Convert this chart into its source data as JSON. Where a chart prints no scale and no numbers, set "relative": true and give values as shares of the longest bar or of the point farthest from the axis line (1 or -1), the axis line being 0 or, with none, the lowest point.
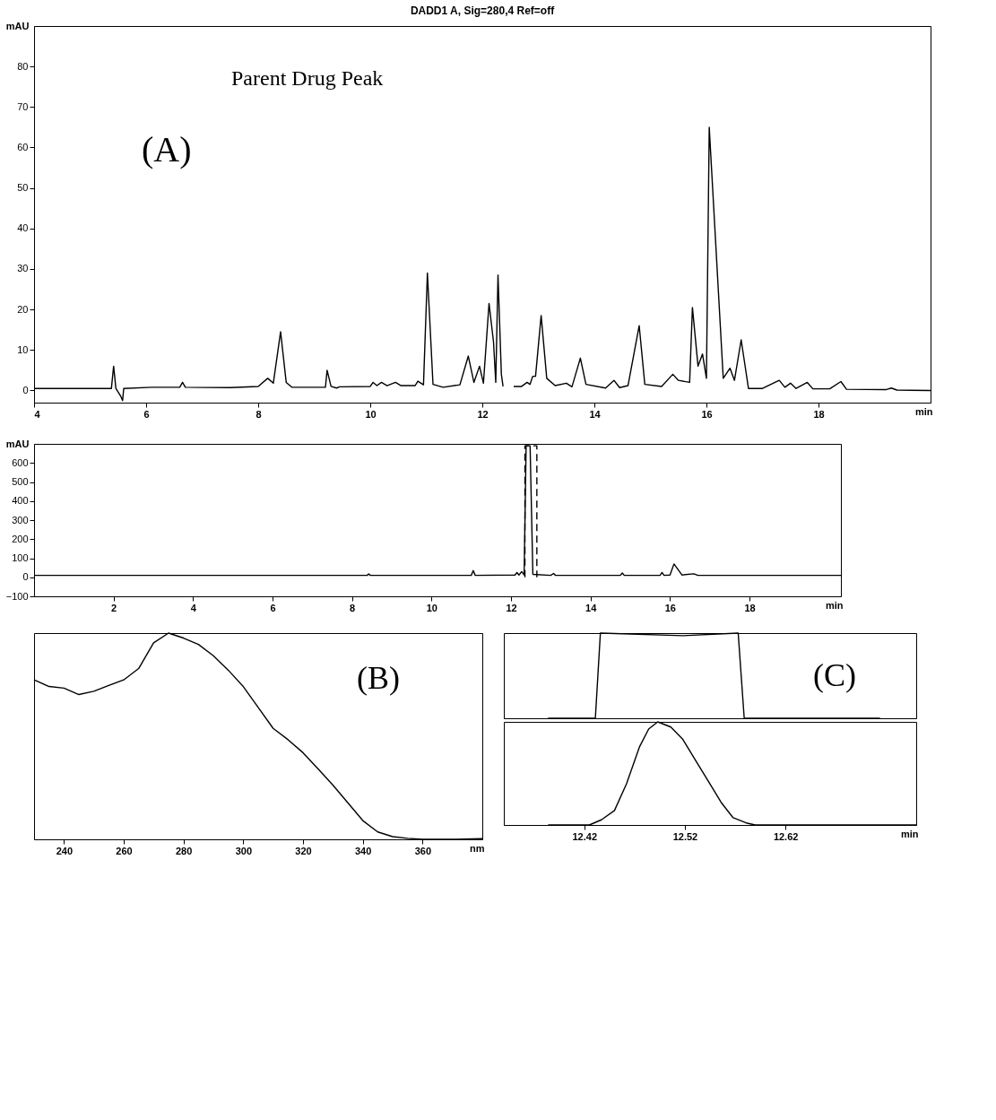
{
  "chart_data": [
    {
      "type": "line",
      "title": "DADD1 A, Sig=280,4 Ref=off",
      "xlabel": "min",
      "ylabel": "mAU",
      "xlim": [
        4,
        20
      ],
      "ylim": [
        -3,
        90
      ],
      "xticks": [
        4,
        6,
        8,
        10,
        12,
        14,
        16,
        18
      ],
      "yticks": [
        0,
        10,
        20,
        30,
        40,
        50,
        60,
        70,
        80
      ],
      "grid": false,
      "legend": false,
      "line_style": "solid",
      "annotations": [
        "(A)",
        "Parent Drug Peak"
      ],
      "series": [
        {
          "color": "#000000",
          "x": [
            4,
            5.38,
            5.42,
            5.46,
            5.55,
            5.58,
            5.6,
            6.1,
            6.6,
            6.65,
            6.7,
            7.5,
            8.0,
            8.17,
            8.27,
            8.4,
            8.5,
            8.6,
            9.2,
            9.23,
            9.3,
            9.4,
            9.45,
            10.0,
            10.05,
            10.12,
            10.2,
            10.3,
            10.45,
            10.55,
            10.8,
            10.85,
            10.95,
            11.02,
            11.12,
            11.3,
            11.6,
            11.75,
            11.85,
            11.95,
            12.02,
            12.12,
            12.2,
            12.24,
            12.28,
            12.34,
            12.37,
            12.4,
            12.48,
            12.56,
            12.7,
            12.8,
            12.85,
            12.9,
            12.95,
            13.05,
            13.15,
            13.3,
            13.5,
            13.6,
            13.75,
            13.85,
            14.2,
            14.35,
            14.45,
            14.6,
            14.8,
            14.9,
            15.2,
            15.4,
            15.5,
            15.7,
            15.75,
            15.85,
            15.93,
            16.0,
            16.05,
            16.3,
            16.42,
            16.5,
            16.62,
            16.75,
            17.0,
            17.3,
            17.4,
            17.5,
            17.6,
            17.8,
            17.9,
            18.2,
            18.4,
            18.5,
            19.2,
            19.3,
            19.4,
            20
          ],
          "values": [
            0.5,
            0.5,
            6,
            0.5,
            -1.5,
            -2.5,
            0.5,
            0.8,
            0.8,
            2,
            0.8,
            0.7,
            1,
            3,
            1.8,
            14.5,
            2,
            0.8,
            0.8,
            5,
            1,
            0.6,
            0.9,
            1,
            2,
            1.2,
            2,
            1.2,
            2,
            1.2,
            1.2,
            2.3,
            1.4,
            29,
            1.5,
            0.8,
            1.4,
            8.5,
            2,
            6,
            1.8,
            21.5,
            12,
            2,
            28.5,
            4,
            1,
            null,
            null,
            1,
            1,
            2,
            1.5,
            3.5,
            3.5,
            18.5,
            3,
            1.2,
            1.8,
            0.9,
            8,
            1.5,
            0.6,
            2.5,
            0.7,
            1.2,
            16,
            1.5,
            1,
            4,
            2.5,
            2,
            20.5,
            6,
            9,
            3,
            65,
            3,
            5.5,
            2.5,
            12.5,
            0.5,
            0.5,
            2.5,
            0.8,
            1.8,
            0.5,
            2,
            0.4,
            0.4,
            2.2,
            0.3,
            0.2,
            0.6,
            0.1,
            0
          ]
        }
      ]
    },
    {
      "type": "line",
      "xlabel": "min",
      "ylabel": "mAU",
      "xlim": [
        0,
        20.3
      ],
      "ylim": [
        -100,
        700
      ],
      "xticks": [
        2,
        4,
        6,
        8,
        10,
        12,
        14,
        16,
        18
      ],
      "yticks": [
        -100,
        0,
        100,
        200,
        300,
        400,
        500,
        600
      ],
      "grid": false,
      "legend": false,
      "series": [
        {
          "color": "#000000",
          "line_style": "solid",
          "x": [
            0,
            8.38,
            8.42,
            8.46,
            11.0,
            11.05,
            11.1,
            12.1,
            12.15,
            12.2,
            12.27,
            12.33,
            12.38,
            12.48,
            12.55,
            13.0,
            13.07,
            13.12,
            14.75,
            14.8,
            14.85,
            15.75,
            15.8,
            15.85,
            16.0,
            16.1,
            16.3,
            16.6,
            16.7,
            20.3
          ],
          "values": [
            10,
            10,
            18,
            10,
            10,
            35,
            10,
            12,
            25,
            12,
            30,
            12,
            690,
            690,
            15,
            10,
            20,
            10,
            10,
            22,
            10,
            10,
            25,
            10,
            12,
            70,
            12,
            18,
            10,
            10
          ]
        },
        {
          "color": "#000000",
          "line_style": "dashed",
          "x": [
            12.35,
            12.35,
            12.65,
            12.65
          ],
          "values": [
            0,
            690,
            690,
            0
          ]
        }
      ]
    },
    {
      "type": "line",
      "relative": true,
      "xlabel": "nm",
      "xlim": [
        230,
        380
      ],
      "xticks": [
        240,
        260,
        280,
        300,
        320,
        340,
        360
      ],
      "tick_labels": "x",
      "grid": false,
      "legend": false,
      "line_style": "solid",
      "annotations": [
        "(B)"
      ],
      "series": [
        {
          "color": "#000000",
          "x": [
            230,
            235,
            240,
            245,
            250,
            255,
            260,
            265,
            270,
            275,
            280,
            285,
            290,
            295,
            300,
            305,
            310,
            315,
            320,
            325,
            330,
            335,
            340,
            345,
            350,
            355,
            360,
            370,
            380
          ],
          "values": [
            0.773,
            0.741,
            0.733,
            0.702,
            0.718,
            0.746,
            0.773,
            0.828,
            0.953,
            1,
            0.976,
            0.945,
            0.89,
            0.82,
            0.741,
            0.64,
            0.538,
            0.483,
            0.42,
            0.342,
            0.263,
            0.177,
            0.091,
            0.036,
            0.013,
            0.005,
            0,
            0,
            0.003
          ]
        }
      ]
    },
    {
      "type": "line",
      "relative": true,
      "xlim": [
        12.34,
        12.75
      ],
      "tick_labels": false,
      "grid": false,
      "legend": false,
      "line_style": "solid",
      "annotations": [
        "(C)"
      ],
      "series": [
        {
          "color": "#000000",
          "x": [
            12.384,
            12.431,
            12.436,
            12.518,
            12.573,
            12.579,
            12.714
          ],
          "values": [
            0,
            0,
            1,
            0.97,
            1,
            0,
            0
          ]
        }
      ]
    },
    {
      "type": "line",
      "relative": true,
      "xlabel": "min",
      "xlim": [
        12.34,
        12.75
      ],
      "xticks": [
        12.42,
        12.52,
        12.62
      ],
      "tick_labels": "x",
      "grid": false,
      "legend": false,
      "line_style": "solid",
      "series": [
        {
          "color": "#000000",
          "x": [
            12.384,
            12.425,
            12.437,
            12.45,
            12.462,
            12.475,
            12.484,
            12.493,
            12.506,
            12.518,
            12.531,
            12.543,
            12.556,
            12.568,
            12.581,
            12.59,
            12.75
          ],
          "values": [
            0,
            0,
            0.05,
            0.14,
            0.4,
            0.76,
            0.93,
            1,
            0.95,
            0.83,
            0.62,
            0.43,
            0.22,
            0.07,
            0.02,
            0,
            0
          ]
        }
      ]
    }
  ]
}
